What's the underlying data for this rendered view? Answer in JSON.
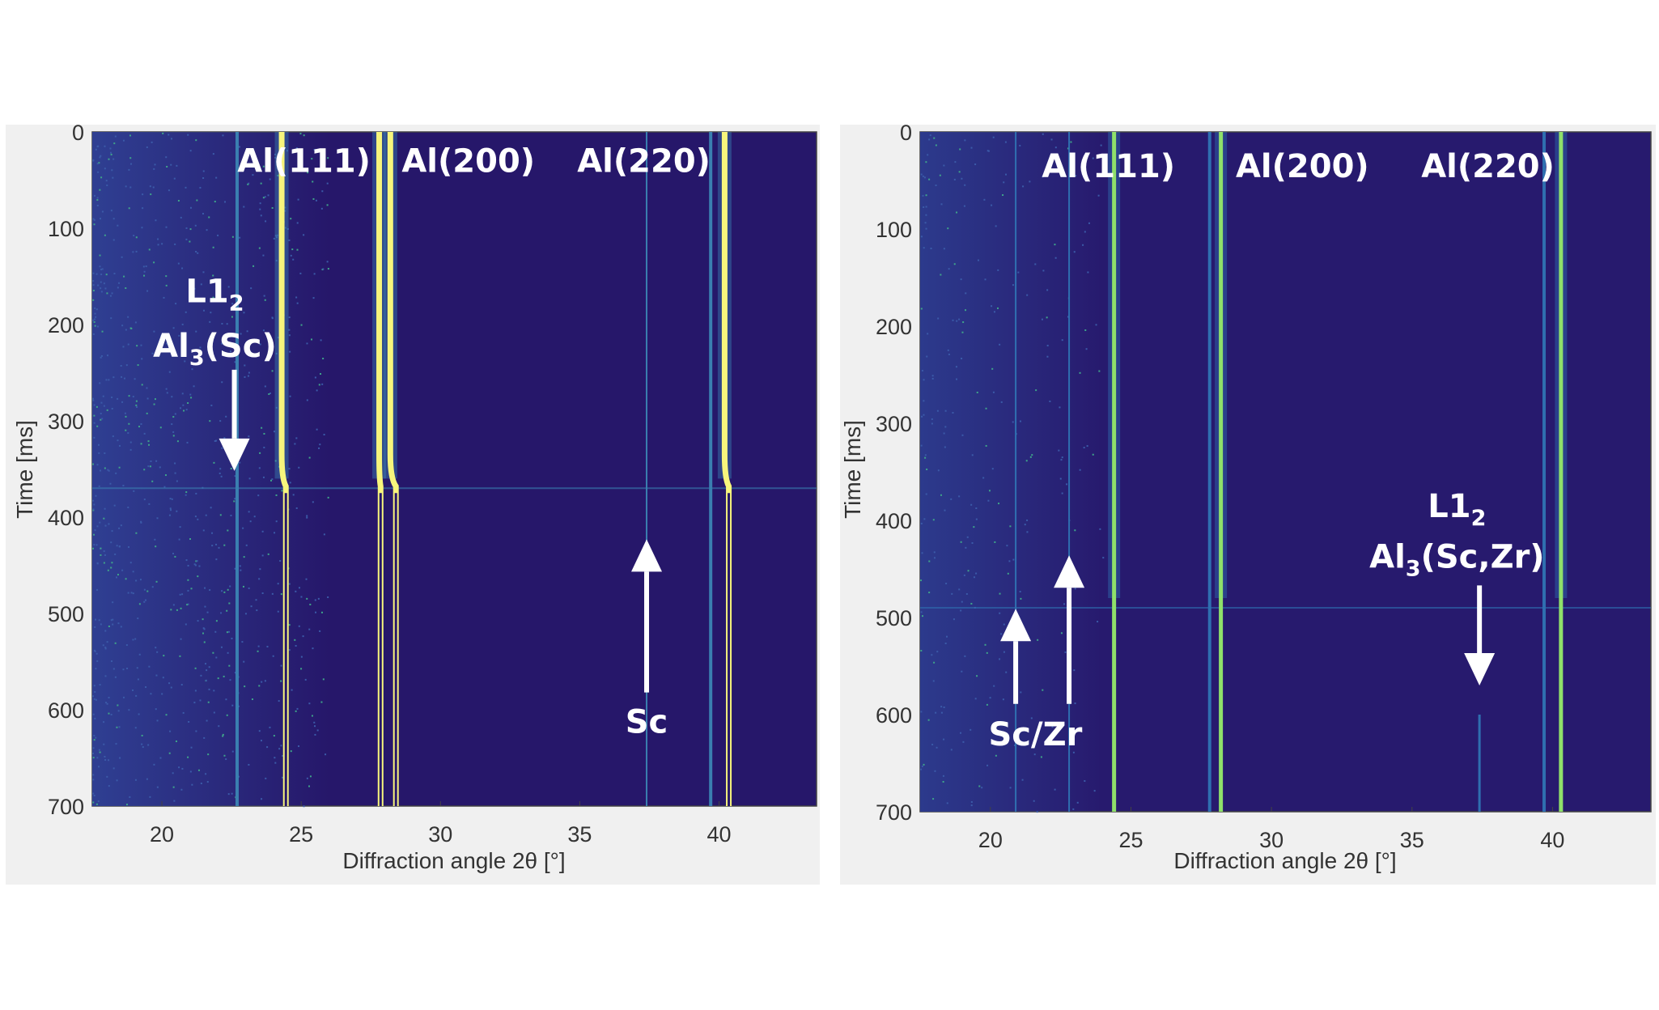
{
  "chart_data": [
    {
      "type": "heatmap",
      "title": "",
      "xlabel": "Diffraction angle 2θ [°]",
      "ylabel": "Time [ms]",
      "xlim": [
        17.5,
        43.5
      ],
      "ylim": [
        0,
        700
      ],
      "y_reversed": true,
      "xticks": [
        20,
        25,
        30,
        35,
        40
      ],
      "yticks": [
        0,
        100,
        200,
        300,
        400,
        500,
        600,
        700
      ],
      "colors": {
        "background": "#26176a",
        "noise": "#2f3f92",
        "peak": "#f7f57c",
        "weak": "#3a7fb0"
      },
      "peaks": [
        {
          "name": "Al(111)",
          "angle_before": 24.3,
          "angle_after": 24.45,
          "t_change": 360,
          "intensity": "strong"
        },
        {
          "name": "Al(200) a",
          "angle_before": 27.8,
          "angle_after": 27.85,
          "t_change": 360,
          "intensity": "strong"
        },
        {
          "name": "Al(200) b",
          "angle_before": 28.2,
          "angle_after": 28.4,
          "t_change": 360,
          "intensity": "strong"
        },
        {
          "name": "Al(220)",
          "angle_before": 40.2,
          "angle_after": 40.35,
          "t_change": 360,
          "intensity": "strong"
        },
        {
          "name": "Al(220) satellite",
          "angle_before": 39.7,
          "angle_after": 39.7,
          "t_change": 360,
          "intensity": "weak"
        },
        {
          "name": "L1_2",
          "angle_before": 22.7,
          "angle_after": 22.7,
          "t_change": 360,
          "intensity": "weak"
        },
        {
          "name": "Sc",
          "angle_before": 37.4,
          "angle_after": 37.4,
          "t_change": 360,
          "intensity": "faint"
        }
      ],
      "noisy_band_angle": [
        17.5,
        26.0
      ],
      "event_time": 370,
      "labels": [
        {
          "text": "Al(111)",
          "angle": 25.1,
          "time": 30
        },
        {
          "text": "Al(200)",
          "angle": 31.0,
          "time": 30
        },
        {
          "text": "Al(220)",
          "angle": 37.3,
          "time": 30
        },
        {
          "text": "Sc",
          "angle": 37.4,
          "time": 612
        }
      ],
      "l12_label": {
        "main": "L1",
        "sub": "2",
        "angle": 21.9,
        "time": 165
      },
      "phase_label": {
        "main": "Al",
        "sub": "3",
        "rest": "(Sc)",
        "angle": 21.9,
        "time": 222
      },
      "arrows": [
        {
          "angle": 22.6,
          "from_time": 247,
          "to_time": 352,
          "direction": "down"
        },
        {
          "angle": 37.4,
          "from_time": 582,
          "to_time": 423,
          "direction": "up"
        }
      ]
    },
    {
      "type": "heatmap",
      "title": "",
      "xlabel": "Diffraction angle 2θ [°]",
      "ylabel": "Time [ms]",
      "xlim": [
        17.5,
        43.5
      ],
      "ylim": [
        0,
        700
      ],
      "y_reversed": true,
      "xticks": [
        20,
        25,
        30,
        35,
        40
      ],
      "yticks": [
        0,
        100,
        200,
        300,
        400,
        500,
        600,
        700
      ],
      "colors": {
        "background": "#271a6e",
        "noise": "#2c3a8c",
        "peak": "#8fe06a",
        "weak": "#2f6fb0"
      },
      "peaks": [
        {
          "name": "Al(111)",
          "angle_before": 24.4,
          "angle_after": 24.4,
          "t_change": 480,
          "intensity": "medium"
        },
        {
          "name": "Al(200) a",
          "angle_before": 27.8,
          "angle_after": 27.8,
          "t_change": 480,
          "intensity": "weak"
        },
        {
          "name": "Al(200) b",
          "angle_before": 28.2,
          "angle_after": 28.2,
          "t_change": 480,
          "intensity": "medium"
        },
        {
          "name": "Al(220)",
          "angle_before": 40.3,
          "angle_after": 40.3,
          "t_change": 480,
          "intensity": "medium"
        },
        {
          "name": "Al(220) satellite",
          "angle_before": 39.7,
          "angle_after": 39.7,
          "t_change": 480,
          "intensity": "weak"
        },
        {
          "name": "Sc/Zr 1",
          "angle_before": 20.9,
          "angle_after": 20.9,
          "t_change": 480,
          "intensity": "faint"
        },
        {
          "name": "Sc/Zr 2",
          "angle_before": 22.8,
          "angle_after": 22.8,
          "t_change": 480,
          "intensity": "faint"
        },
        {
          "name": "L1_2",
          "angle_before": 37.4,
          "angle_after": 37.4,
          "t_change": 600,
          "intensity": "faint_after"
        }
      ],
      "noisy_band_angle": [
        17.5,
        24.0
      ],
      "event_time": 490,
      "labels": [
        {
          "text": "Al(111)",
          "angle": 24.2,
          "time": 35
        },
        {
          "text": "Al(200)",
          "angle": 31.1,
          "time": 35
        },
        {
          "text": "Al(220)",
          "angle": 37.7,
          "time": 35
        },
        {
          "text": "Sc/Zr",
          "angle": 21.6,
          "time": 620
        }
      ],
      "l12_label": {
        "main": "L1",
        "sub": "2",
        "angle": 36.6,
        "time": 385
      },
      "phase_label": {
        "main": "Al",
        "sub": "3",
        "rest": "(Sc,Zr)",
        "angle": 36.6,
        "time": 437
      },
      "arrows": [
        {
          "angle": 20.9,
          "from_time": 589,
          "to_time": 491,
          "direction": "up"
        },
        {
          "angle": 22.8,
          "from_time": 589,
          "to_time": 436,
          "direction": "up"
        },
        {
          "angle": 37.4,
          "from_time": 467,
          "to_time": 570,
          "direction": "down"
        }
      ]
    }
  ]
}
